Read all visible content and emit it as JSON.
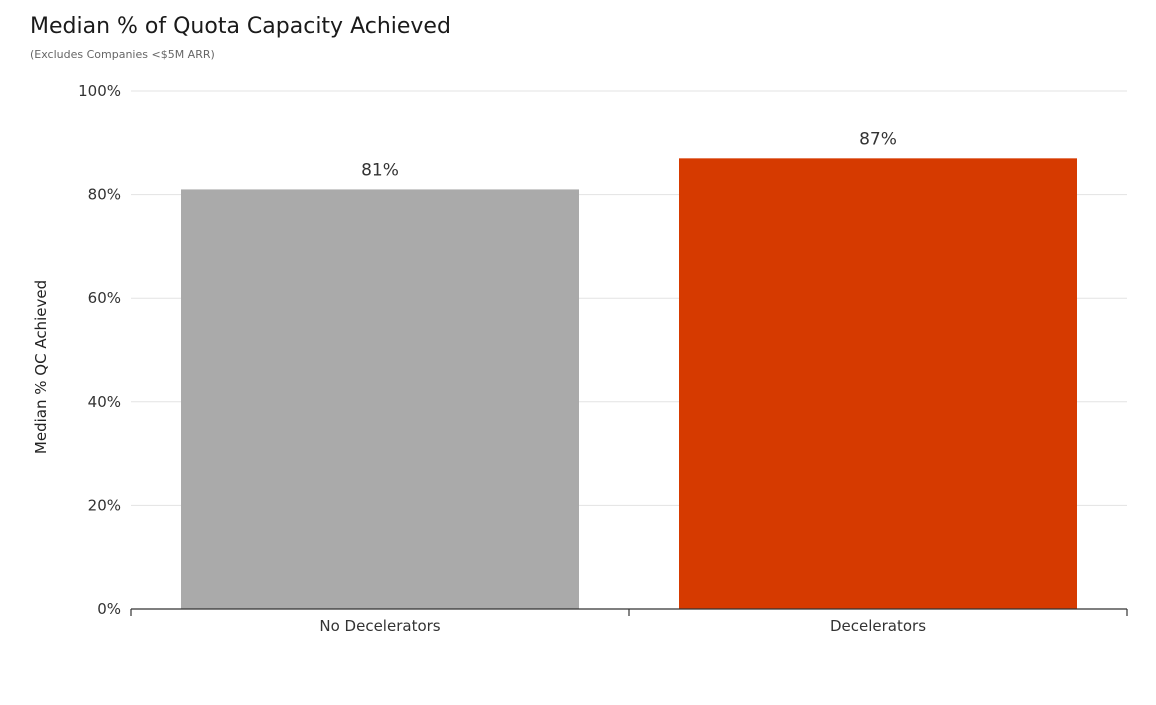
{
  "chart_data": {
    "type": "bar",
    "title": "Median % of Quota Capacity Achieved",
    "subtitle": "(Excludes Companies <$5M ARR)",
    "xlabel": "",
    "ylabel": "Median % QC Achieved",
    "categories": [
      "No Decelerators",
      "Decelerators"
    ],
    "values": [
      81,
      87
    ],
    "data_labels": [
      "81%",
      "87%"
    ],
    "colors": [
      "#aaaaaa",
      "#d63a00"
    ],
    "ylim": [
      0,
      100
    ],
    "yticks": [
      0,
      20,
      40,
      60,
      80,
      100
    ],
    "ytick_labels": [
      "0%",
      "20%",
      "40%",
      "60%",
      "80%",
      "100%"
    ],
    "grid": true,
    "legend": "none"
  }
}
